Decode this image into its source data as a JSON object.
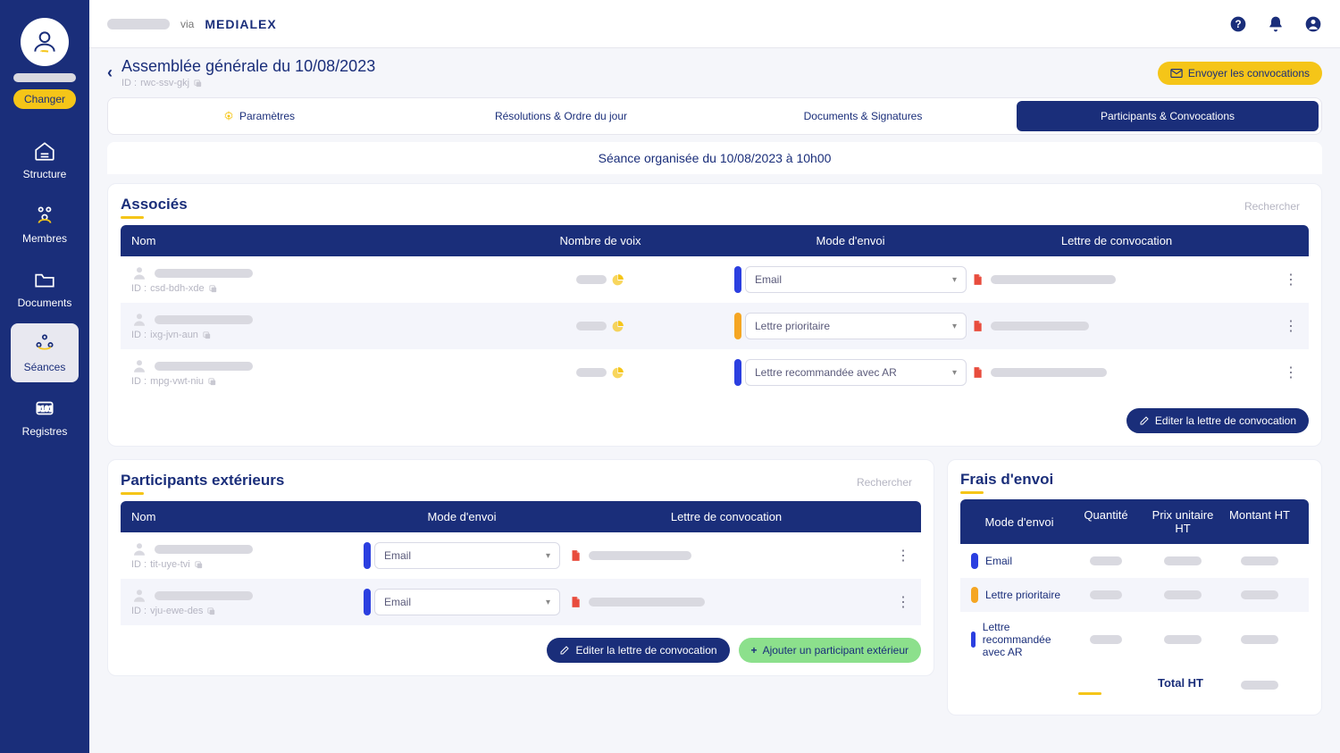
{
  "sidebar": {
    "changer_label": "Changer",
    "items": [
      {
        "label": "Structure"
      },
      {
        "label": "Membres"
      },
      {
        "label": "Documents"
      },
      {
        "label": "Séances"
      },
      {
        "label": "Registres"
      }
    ]
  },
  "topbar": {
    "via": "via",
    "brand": "MEDIALEX"
  },
  "header": {
    "title": "Assemblée générale du 10/08/2023",
    "id_prefix": "ID :",
    "id_value": "rwc-ssv-gkj",
    "send_label": "Envoyer les convocations"
  },
  "tabs": [
    {
      "label": "Paramètres"
    },
    {
      "label": "Résolutions & Ordre du jour"
    },
    {
      "label": "Documents & Signatures"
    },
    {
      "label": "Participants & Convocations"
    }
  ],
  "seance_banner": "Séance organisée du 10/08/2023 à 10h00",
  "associes": {
    "title": "Associés",
    "search_placeholder": "Rechercher",
    "columns": {
      "nom": "Nom",
      "voix": "Nombre de voix",
      "mode": "Mode d'envoi",
      "lettre": "Lettre de convocation"
    },
    "rows": [
      {
        "id": "csd-bdh-xde",
        "mode": "Email",
        "color": "color-blue",
        "doc_w": "140"
      },
      {
        "id": "ixg-jvn-aun",
        "mode": "Lettre prioritaire",
        "color": "color-orange",
        "doc_w": "110"
      },
      {
        "id": "mpg-vwt-niu",
        "mode": "Lettre recommandée avec AR",
        "color": "color-blue",
        "doc_w": "130"
      }
    ],
    "edit_button": "Editer la lettre de convocation"
  },
  "participants": {
    "title": "Participants extérieurs",
    "search_placeholder": "Rechercher",
    "columns": {
      "nom": "Nom",
      "mode": "Mode d'envoi",
      "lettre": "Lettre de convocation"
    },
    "rows": [
      {
        "id": "tit-uye-tvi",
        "mode": "Email",
        "color": "color-blue",
        "doc_w": "115"
      },
      {
        "id": "vju-ewe-des",
        "mode": "Email",
        "color": "color-blue",
        "doc_w": "130"
      }
    ],
    "edit_button": "Editer la lettre de convocation",
    "add_button": "Ajouter un participant extérieur"
  },
  "frais": {
    "title": "Frais d'envoi",
    "columns": {
      "mode": "Mode d'envoi",
      "q": "Quantité",
      "pu": "Prix unitaire HT",
      "m": "Montant HT"
    },
    "rows": [
      {
        "label": "Email",
        "color": "color-blue"
      },
      {
        "label": "Lettre prioritaire",
        "color": "color-orange"
      },
      {
        "label": "Lettre recommandée avec AR",
        "color": "color-blue"
      }
    ],
    "total_label": "Total HT"
  },
  "id_prefix": "ID :",
  "colors": {
    "primary": "#1a2e7a",
    "accent": "#f5c518",
    "pdf": "#e84c3d",
    "green": "#8ce08c",
    "blue_chip": "#2b3fe0",
    "orange_chip": "#f5a623"
  }
}
